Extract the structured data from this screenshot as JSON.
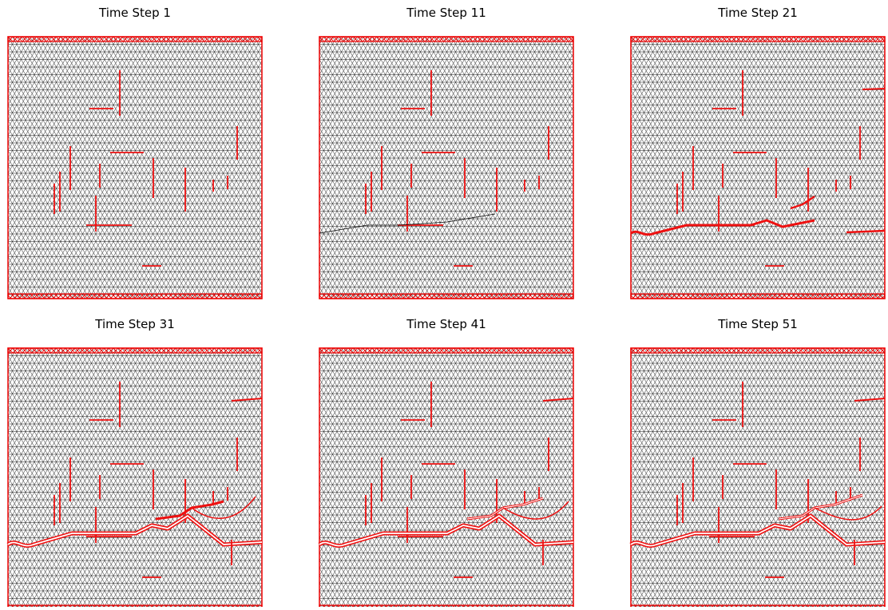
{
  "panels": [
    {
      "title": "Time Step 1"
    },
    {
      "title": "Time Step 11"
    },
    {
      "title": "Time Step 21"
    },
    {
      "title": "Time Step 31"
    },
    {
      "title": "Time Step 41"
    },
    {
      "title": "Time Step 51"
    }
  ]
}
